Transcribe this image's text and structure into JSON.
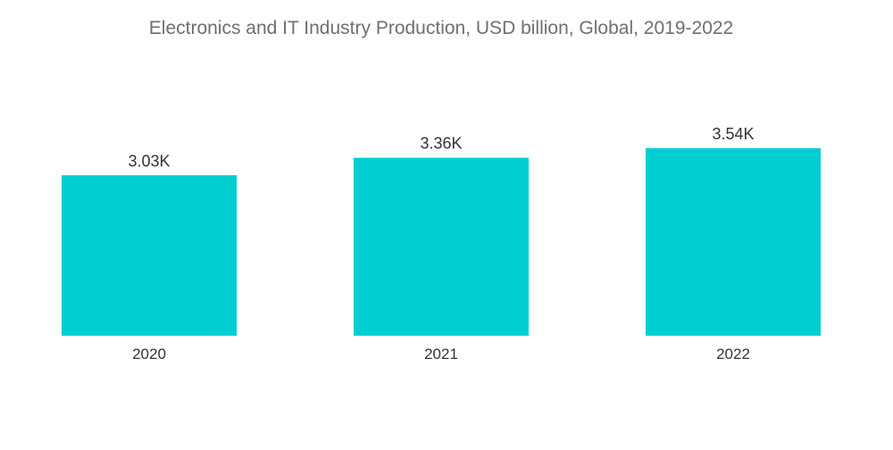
{
  "chart_data": {
    "type": "bar",
    "title": "Electronics and IT Industry Production, USD billion, Global, 2019-2022",
    "xlabel": "",
    "ylabel": "",
    "categories": [
      "2020",
      "2021",
      "2022"
    ],
    "values": [
      3030,
      3360,
      3540
    ],
    "data_labels": [
      "3.03K",
      "3.36K",
      "3.54K"
    ],
    "ylim": [
      0,
      3540
    ],
    "grid": false,
    "legend": "none",
    "bar_color": "#00ced1"
  }
}
